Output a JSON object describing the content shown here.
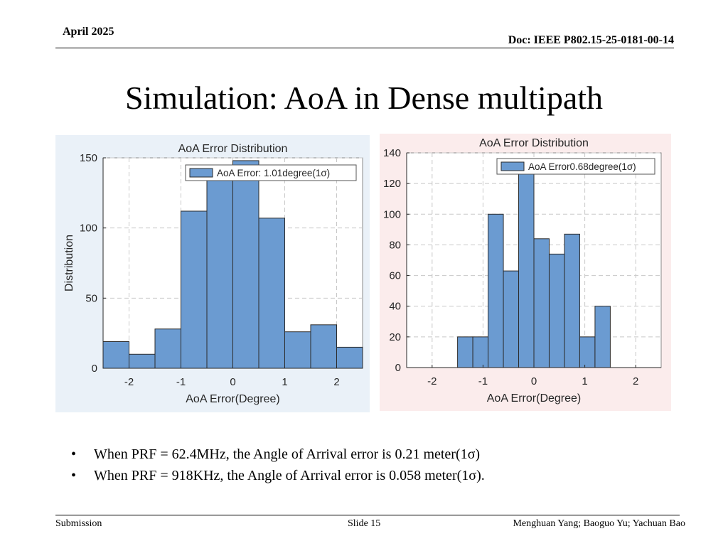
{
  "header": {
    "date": "April 2025",
    "doc": "Doc: IEEE P802.15-25-0181-00-14"
  },
  "slide": {
    "title": "Simulation: AoA in Dense multipath"
  },
  "bullets": [
    "When PRF = 62.4MHz, the Angle of Arrival error is 0.21 meter(1σ)",
    "When PRF = 918KHz, the Angle of Arrival error is 0.058 meter(1σ)."
  ],
  "footer": {
    "left": "Submission",
    "center": "Slide 15",
    "right": "Menghuan Yang; Baoguo Yu; Yachuan Bao"
  },
  "colors": {
    "bar_fill": "#6b9bd1",
    "bar_stroke": "#2b2b2b",
    "left_panel_bg": "#eaf1f8",
    "right_panel_bg": "#fbecec",
    "grid": "#c8c8c8"
  },
  "chart_data": [
    {
      "type": "bar",
      "title": "AoA Error Distribution",
      "xlabel": "AoA Error(Degree)",
      "ylabel": "Distribution",
      "legend": "AoA  Error:  1.01degree(1σ)",
      "legend_position": "top-right",
      "grid": true,
      "xlim": [
        -2.5,
        2.5
      ],
      "ylim": [
        0,
        150
      ],
      "xticks": [
        -2,
        -1,
        0,
        1,
        2
      ],
      "yticks": [
        0,
        50,
        100,
        150
      ],
      "bin_edges": [
        -2.5,
        -2.0,
        -1.5,
        -1.0,
        -0.5,
        0.0,
        0.5,
        1.0,
        1.5,
        2.0,
        2.5
      ],
      "values": [
        19,
        10,
        28,
        112,
        140,
        148,
        107,
        26,
        31,
        15
      ]
    },
    {
      "type": "bar",
      "title": "AoA Error Distribution",
      "xlabel": "AoA Error(Degree)",
      "ylabel": "",
      "legend": "AoA  Error0.68degree(1σ)",
      "legend_position": "top-right",
      "grid": true,
      "xlim": [
        -2.5,
        2.5
      ],
      "ylim": [
        0,
        140
      ],
      "xticks": [
        -2,
        -1,
        0,
        1,
        2
      ],
      "yticks": [
        0,
        20,
        40,
        60,
        80,
        100,
        120,
        140
      ],
      "bin_edges": [
        -1.5,
        -1.2,
        -0.9,
        -0.6,
        -0.3,
        0.0,
        0.3,
        0.6,
        0.9,
        1.2,
        1.5
      ],
      "values": [
        20,
        20,
        100,
        63,
        127,
        84,
        74,
        87,
        20,
        40
      ]
    }
  ]
}
